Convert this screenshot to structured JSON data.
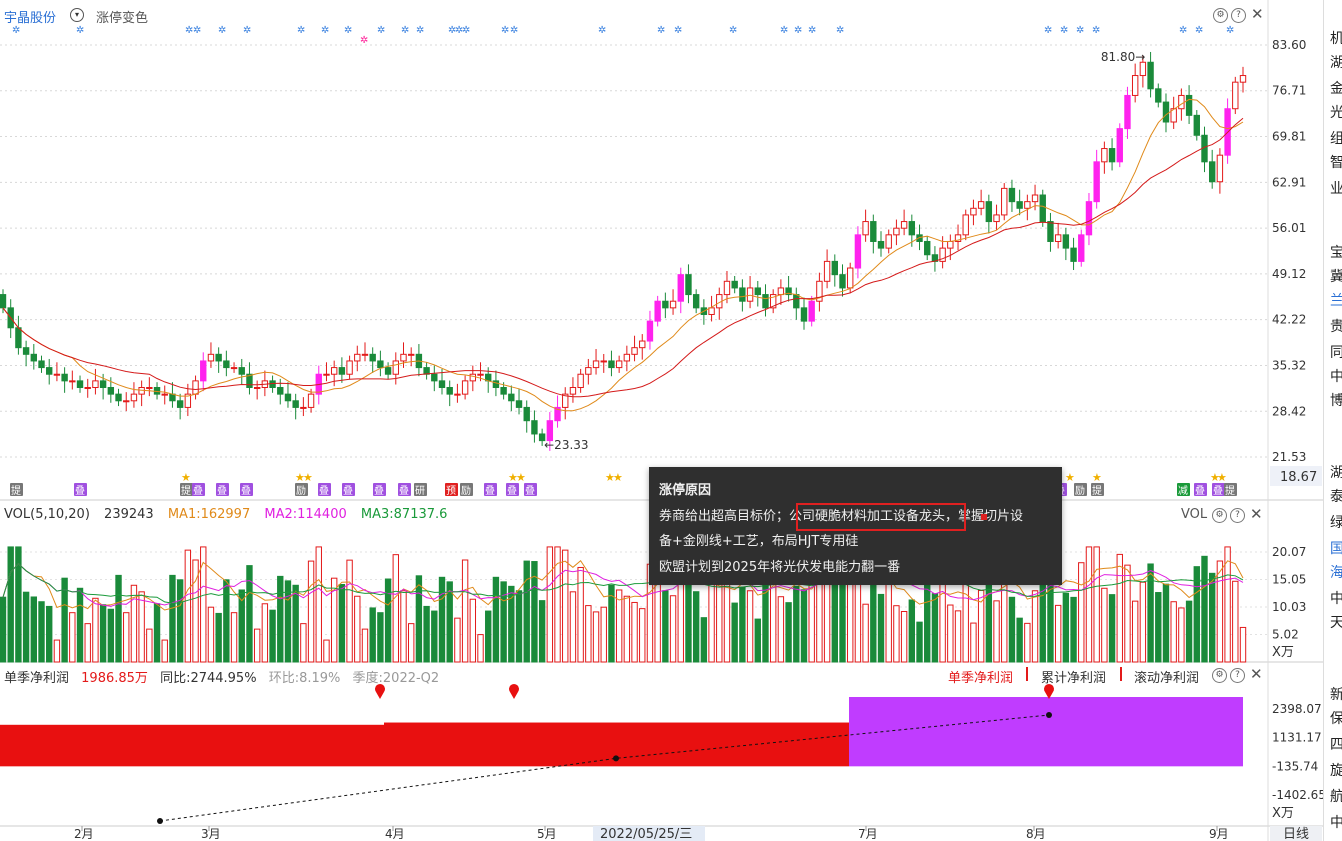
{
  "header": {
    "stock_name": "宇晶股份",
    "tab_label": "涨停变色"
  },
  "price_axis": {
    "ticks": [
      "83.60",
      "76.71",
      "69.81",
      "62.91",
      "56.01",
      "49.12",
      "42.22",
      "35.32",
      "28.42",
      "21.53"
    ],
    "current_price": "18.67",
    "high_label": "81.80",
    "low_label": "23.33"
  },
  "volume_panel": {
    "title": "VOL(5,10,20)",
    "value": "239243",
    "ma1": "MA1:162997",
    "ma2": "MA2:114400",
    "ma3": "MA3:87137.6",
    "right_label": "VOL",
    "ticks": [
      "20.07",
      "15.05",
      "10.03",
      "5.02"
    ],
    "unit": "X万"
  },
  "profit_panel": {
    "title": "单季净利润",
    "value": "1986.85万",
    "yoy": "同比:2744.95%",
    "qoq": "环比:8.19%",
    "period": "季度:2022-Q2",
    "tabs": [
      "单季净利润",
      "累计净利润",
      "滚动净利润"
    ],
    "ticks": [
      "2398.07",
      "1131.17",
      "-135.74",
      "-1402.65"
    ],
    "unit": "X万"
  },
  "x_axis": {
    "months": [
      "2月",
      "3月",
      "4月",
      "5月",
      "7月",
      "8月",
      "9月"
    ],
    "cursor_date": "2022/05/25/三",
    "period_button": "日线"
  },
  "tooltip": {
    "title": "涨停原因",
    "line1_a": "券商给出超高目标价；",
    "line1_hl": "公司硬脆材料加工设备龙头",
    "line1_b": "，掌握切片设",
    "line2": "备+金刚线+工艺，布局HJT专用硅",
    "line3": "欧盟计划到2025年将光伏发电能力翻一番"
  },
  "event_markers": [
    "提",
    "叠",
    "提",
    "叠",
    "叠",
    "叠",
    "励",
    "叠",
    "叠",
    "叠",
    "叠",
    "研",
    "预",
    "励",
    "叠",
    "叠",
    "叠",
    "叠",
    "励",
    "提",
    "减",
    "叠",
    "叠",
    "提"
  ],
  "sidebar_items": [
    "机",
    "湖",
    "金",
    "光",
    "组",
    "智",
    "业",
    "宝",
    "冀",
    "兰",
    "贵",
    "同",
    "中",
    "博",
    "湖",
    "泰",
    "绿",
    "国",
    "海",
    "中",
    "天",
    "新",
    "保",
    "四",
    "旋",
    "航",
    "中"
  ],
  "colors": {
    "up": "#e31a1a",
    "down": "#1a8a3a",
    "limit_up": "#ff22ee",
    "ma_short": "#e08a1a",
    "ma_long": "#d41a1a",
    "vol_ma2": "#e020e0",
    "vol_ma3": "#1a9a3a",
    "profit_past": "#e81010",
    "profit_recent": "#c03cff"
  },
  "chart_data": {
    "type": "candlestick",
    "price_range": [
      21.53,
      83.6
    ],
    "volume_range_wan": [
      0,
      25
    ],
    "candles_close": [
      44,
      41,
      38,
      37,
      36,
      35,
      34,
      34,
      33,
      33,
      32,
      32,
      33,
      32,
      31,
      30,
      30,
      31,
      32,
      32,
      31,
      31,
      30,
      29,
      31,
      33,
      36,
      37,
      36,
      35,
      35,
      34,
      32,
      32,
      33,
      32,
      31,
      30,
      29,
      29,
      31,
      34,
      34,
      35,
      34,
      36,
      37,
      37,
      36,
      35,
      34,
      36,
      37,
      37,
      35,
      34,
      33,
      32,
      31,
      31,
      33,
      34,
      34,
      33,
      32,
      31,
      30,
      29,
      27,
      25,
      24,
      27,
      29,
      31,
      32,
      34,
      35,
      36,
      36,
      35,
      36,
      37,
      38,
      39,
      42,
      45,
      44,
      45,
      49,
      46,
      44,
      43,
      44,
      46,
      48,
      47,
      45,
      47,
      46,
      44,
      46,
      47,
      46,
      44,
      42,
      45,
      48,
      51,
      49,
      47,
      50,
      55,
      57,
      54,
      53,
      55,
      56,
      57,
      55,
      54,
      52,
      51,
      53,
      54,
      55,
      58,
      59,
      60,
      57,
      58,
      62,
      60,
      59,
      60,
      61,
      57,
      54,
      55,
      53,
      51,
      55,
      60,
      66,
      68,
      66,
      71,
      76,
      79,
      81,
      77,
      75,
      72,
      74,
      76,
      73,
      70,
      66,
      63,
      67,
      74,
      78,
      79
    ],
    "profit_quarters": [
      {
        "label": "past",
        "value": -135.74
      },
      {
        "label": "2022-Q1",
        "value": -135.74
      },
      {
        "label": "2022-Q2",
        "value": 1986.85
      }
    ]
  }
}
